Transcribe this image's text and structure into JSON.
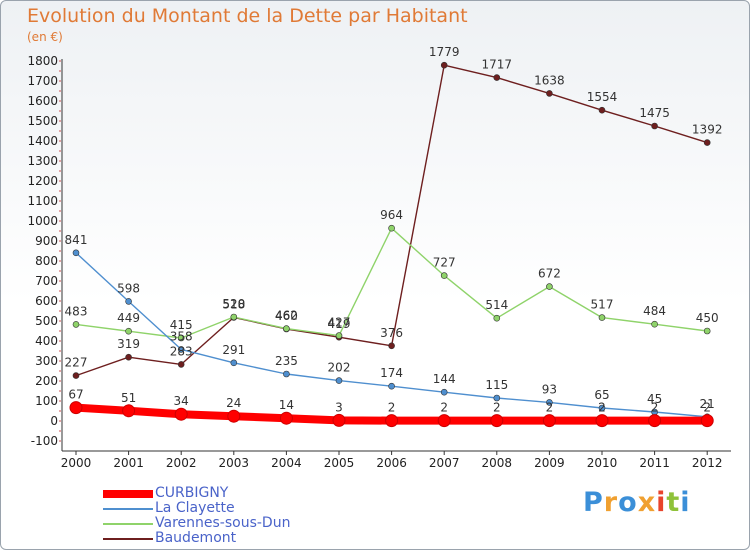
{
  "title": "Evolution du Montant de la Dette par Habitant",
  "unit": "(en €)",
  "logo": "Proxiti",
  "chart_data": {
    "type": "line",
    "title": "Evolution du Montant de la Dette par Habitant",
    "ylabel": "(en €)",
    "xlabel": "",
    "x": [
      "2000",
      "2001",
      "2002",
      "2003",
      "2004",
      "2005",
      "2006",
      "2007",
      "2008",
      "2009",
      "2010",
      "2011",
      "2012"
    ],
    "ylim": [
      -100,
      1800
    ],
    "yticks": [
      -100,
      0,
      100,
      200,
      300,
      400,
      500,
      600,
      700,
      800,
      900,
      1000,
      1100,
      1200,
      1300,
      1400,
      1500,
      1600,
      1700,
      1800
    ],
    "grid": false,
    "legend": "bottom-left",
    "series": [
      {
        "name": "CURBIGNY",
        "color": "#ff0000",
        "values": [
          67,
          51,
          34,
          24,
          14,
          3,
          2,
          2,
          2,
          2,
          2,
          2,
          2
        ]
      },
      {
        "name": "La Clayette",
        "color": "#4f8fcf",
        "values": [
          841,
          598,
          358,
          291,
          235,
          202,
          174,
          144,
          115,
          93,
          65,
          45,
          21
        ]
      },
      {
        "name": "Varennes-sous-Dun",
        "color": "#8fd36a",
        "values": [
          483,
          449,
          415,
          520,
          462,
          427,
          964,
          727,
          514,
          672,
          517,
          484,
          450
        ]
      },
      {
        "name": "Baudemont",
        "color": "#6e1f1f",
        "values": [
          227,
          319,
          283,
          518,
          460,
          419,
          376,
          1779,
          1717,
          1638,
          1554,
          1475,
          1392
        ]
      }
    ]
  }
}
